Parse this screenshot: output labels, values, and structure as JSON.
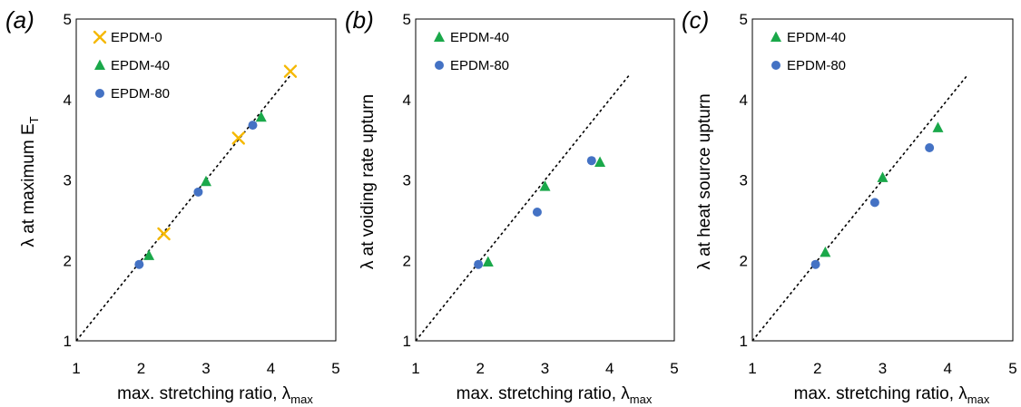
{
  "chart_data": [
    {
      "type": "scatter",
      "panel_label": "(a)",
      "ylabel": {
        "main": "λ at maximum E",
        "sub": "T"
      },
      "xlabel": {
        "main": "max. stretching ratio, λ",
        "sub": "max"
      },
      "xlim": [
        1,
        5
      ],
      "ylim": [
        1,
        5
      ],
      "xticks": [
        "1",
        "2",
        "3",
        "4",
        "5"
      ],
      "yticks": [
        "1",
        "2",
        "3",
        "4",
        "5"
      ],
      "reference_line": {
        "style": "dashed",
        "from": [
          1,
          1
        ],
        "to": [
          4.3,
          4.3
        ]
      },
      "legend_position": "top-left",
      "series": [
        {
          "name": "EPDM-0",
          "marker": "x",
          "color": "#F5B800",
          "x": [
            2.35,
            3.5,
            4.3
          ],
          "y": [
            2.33,
            3.52,
            4.35
          ]
        },
        {
          "name": "EPDM-40",
          "marker": "triangle",
          "color": "#1AA84A",
          "x": [
            2.12,
            3.0,
            3.85
          ],
          "y": [
            2.06,
            2.98,
            3.78
          ]
        },
        {
          "name": "EPDM-80",
          "marker": "circle",
          "color": "#4472C4",
          "x": [
            1.97,
            2.88,
            3.72
          ],
          "y": [
            1.95,
            2.85,
            3.68
          ]
        }
      ]
    },
    {
      "type": "scatter",
      "panel_label": "(b)",
      "ylabel": {
        "main": "λ at voiding rate upturn",
        "sub": ""
      },
      "xlabel": {
        "main": "max. stretching ratio, λ",
        "sub": "max"
      },
      "xlim": [
        1,
        5
      ],
      "ylim": [
        1,
        5
      ],
      "xticks": [
        "1",
        "2",
        "3",
        "4",
        "5"
      ],
      "yticks": [
        "1",
        "2",
        "3",
        "4",
        "5"
      ],
      "reference_line": {
        "style": "dashed",
        "from": [
          1,
          1
        ],
        "to": [
          4.3,
          4.3
        ]
      },
      "legend_position": "top-left",
      "series": [
        {
          "name": "EPDM-40",
          "marker": "triangle",
          "color": "#1AA84A",
          "x": [
            2.12,
            3.0,
            3.85
          ],
          "y": [
            1.98,
            2.92,
            3.22
          ]
        },
        {
          "name": "EPDM-80",
          "marker": "circle",
          "color": "#4472C4",
          "x": [
            1.97,
            2.88,
            3.72
          ],
          "y": [
            1.95,
            2.6,
            3.24
          ]
        }
      ]
    },
    {
      "type": "scatter",
      "panel_label": "(c)",
      "ylabel": {
        "main": "λ at heat source upturn",
        "sub": ""
      },
      "xlabel": {
        "main": "max. stretching ratio, λ",
        "sub": "max"
      },
      "xlim": [
        1,
        5
      ],
      "ylim": [
        1,
        5
      ],
      "xticks": [
        "1",
        "2",
        "3",
        "4",
        "5"
      ],
      "yticks": [
        "1",
        "2",
        "3",
        "4",
        "5"
      ],
      "reference_line": {
        "style": "dashed",
        "from": [
          1,
          1
        ],
        "to": [
          4.3,
          4.3
        ]
      },
      "legend_position": "top-left",
      "series": [
        {
          "name": "EPDM-40",
          "marker": "triangle",
          "color": "#1AA84A",
          "x": [
            2.12,
            3.0,
            3.85
          ],
          "y": [
            2.1,
            3.03,
            3.65
          ]
        },
        {
          "name": "EPDM-80",
          "marker": "circle",
          "color": "#4472C4",
          "x": [
            1.97,
            2.88,
            3.72
          ],
          "y": [
            1.95,
            2.72,
            3.4
          ]
        }
      ]
    }
  ]
}
